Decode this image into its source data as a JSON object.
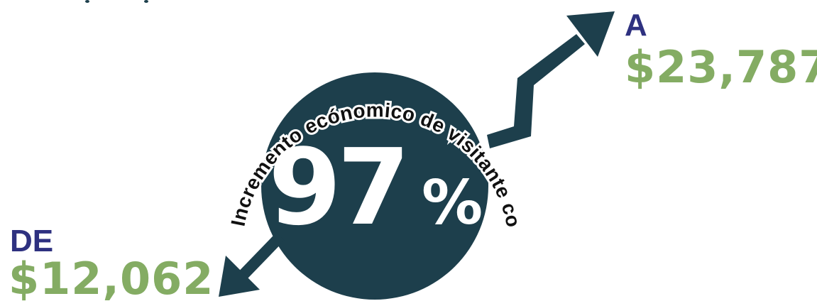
{
  "colors": {
    "circle": "#1d3f4c",
    "arrow": "#1d3f4c",
    "label": "#2e3180",
    "value": "#84ac63",
    "arc_text": "#111111",
    "percent": "#ffffff"
  },
  "arc_text": "Incremento ecónomico de visitante con compañía",
  "percent": {
    "number": "97",
    "sign": "%"
  },
  "from": {
    "label": "DE",
    "value": "$12,062"
  },
  "to": {
    "label": "A",
    "value": "$23,787"
  }
}
